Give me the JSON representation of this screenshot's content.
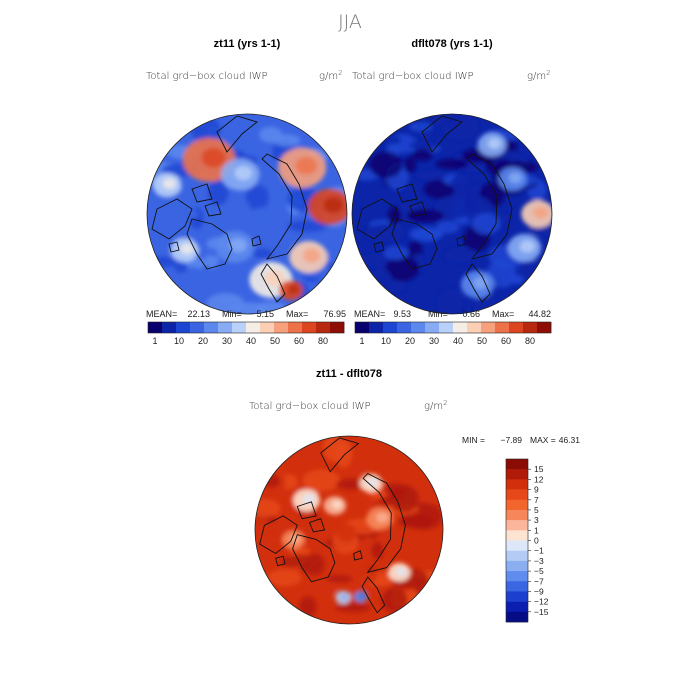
{
  "page_title": "JJA",
  "chart_data": [
    {
      "type": "heatmap",
      "panel": "zt11",
      "title": "zt11 (yrs 1-1)",
      "field_label": "Total grd−box cloud IWP",
      "units": "g/m",
      "units_exp": "2",
      "stats": {
        "mean_label": "MEAN=",
        "mean": "22.13",
        "min_label": "Min=",
        "min": "5.15",
        "max_label": "Max=",
        "max": "76.95"
      },
      "colorbar": {
        "levels": [
          1,
          10,
          20,
          30,
          40,
          50,
          60,
          80
        ],
        "tick_labels": [
          "1",
          "10",
          "20",
          "30",
          "40",
          "50",
          "60",
          "80"
        ],
        "colors": [
          "#08006e",
          "#0b24a8",
          "#1c46d2",
          "#3a64e2",
          "#5c88ee",
          "#87acf4",
          "#b9d1fa",
          "#f4eee6",
          "#fbcfb5",
          "#f6a07c",
          "#ed7249",
          "#dc4520",
          "#b8280e",
          "#8e0e05"
        ]
      },
      "map_style": "mostly-low",
      "blobs": [
        {
          "angle": 125,
          "radius": 0.66,
          "size": 0.22,
          "level": 10
        },
        {
          "angle": 40,
          "radius": 0.72,
          "size": 0.2,
          "level": 9
        },
        {
          "angle": 5,
          "radius": 0.83,
          "size": 0.18,
          "level": 11
        },
        {
          "angle": -35,
          "radius": 0.75,
          "size": 0.16,
          "level": 8
        },
        {
          "angle": -70,
          "radius": 0.7,
          "size": 0.18,
          "level": 7
        },
        {
          "angle": -60,
          "radius": 0.88,
          "size": 0.1,
          "level": 11
        },
        {
          "angle": 160,
          "radius": 0.85,
          "size": 0.12,
          "level": 6
        },
        {
          "angle": -150,
          "radius": 0.72,
          "size": 0.12,
          "level": 6
        },
        {
          "angle": 100,
          "radius": 0.4,
          "size": 0.16,
          "level": 5
        },
        {
          "angle": -110,
          "radius": 0.35,
          "size": 0.16,
          "level": 4
        }
      ]
    },
    {
      "type": "heatmap",
      "panel": "dflt078",
      "title": "dflt078 (yrs 1-1)",
      "field_label": "Total grd−box cloud IWP",
      "units": "g/m",
      "units_exp": "2",
      "stats": {
        "mean_label": "MEAN=",
        "mean": "9.53",
        "min_label": "Min=",
        "min": "0.66",
        "max_label": "Max=",
        "max": "44.82"
      },
      "colorbar": {
        "levels": [
          1,
          10,
          20,
          30,
          40,
          50,
          60,
          80
        ],
        "tick_labels": [
          "1",
          "10",
          "20",
          "30",
          "40",
          "50",
          "60",
          "80"
        ],
        "colors": [
          "#08006e",
          "#0b24a8",
          "#1c46d2",
          "#3a64e2",
          "#5c88ee",
          "#87acf4",
          "#b9d1fa",
          "#f4eee6",
          "#fbcfb5",
          "#f6a07c",
          "#ed7249",
          "#dc4520",
          "#b8280e",
          "#8e0e05"
        ]
      },
      "map_style": "very-low",
      "blobs": [
        {
          "angle": 0,
          "radius": 0.86,
          "size": 0.14,
          "level": 8
        },
        {
          "angle": -25,
          "radius": 0.8,
          "size": 0.14,
          "level": 5
        },
        {
          "angle": -70,
          "radius": 0.75,
          "size": 0.14,
          "level": 4
        },
        {
          "angle": 60,
          "radius": 0.8,
          "size": 0.12,
          "level": 5
        },
        {
          "angle": 30,
          "radius": 0.7,
          "size": 0.12,
          "level": 4
        }
      ]
    },
    {
      "type": "heatmap",
      "panel": "difference",
      "title": "zt11 - dflt078",
      "field_label": "Total grd−box cloud IWP",
      "units": "g/m",
      "units_exp": "2",
      "stats": {
        "min_label": "MIN =",
        "min": "−7.89",
        "max_label": "MAX =",
        "max": "46.31"
      },
      "colorbar": {
        "levels": [
          15,
          12,
          9,
          7,
          5,
          3,
          1,
          0,
          -1,
          -3,
          -5,
          -7,
          -9,
          -12,
          -15
        ],
        "tick_labels": [
          "15",
          "12",
          "9",
          "7",
          "5",
          "3",
          "1",
          "0",
          "−1",
          "−3",
          "−5",
          "−7",
          "−9",
          "−12",
          "−15"
        ],
        "colors": [
          "#8a0c04",
          "#b01a08",
          "#d2300d",
          "#e6481a",
          "#f2652d",
          "#f7875a",
          "#fab59a",
          "#fde3d2",
          "#dce8fa",
          "#b4ccf5",
          "#8aaef0",
          "#5f8ced",
          "#3a66e1",
          "#1c3fcf",
          "#0b1eb0",
          "#050c86"
        ]
      },
      "map_style": "mostly-high",
      "blobs": [
        {
          "angle": 145,
          "radius": 0.55,
          "size": 0.12,
          "level": 7
        },
        {
          "angle": 120,
          "radius": 0.3,
          "size": 0.1,
          "level": 6
        },
        {
          "angle": 65,
          "radius": 0.55,
          "size": 0.1,
          "level": 7
        },
        {
          "angle": -95,
          "radius": 0.72,
          "size": 0.07,
          "level": 9
        },
        {
          "angle": -80,
          "radius": 0.72,
          "size": 0.06,
          "level": 11
        },
        {
          "angle": -40,
          "radius": 0.7,
          "size": 0.1,
          "level": 7
        },
        {
          "angle": 190,
          "radius": 0.6,
          "size": 0.1,
          "level": 5
        },
        {
          "angle": 20,
          "radius": 0.35,
          "size": 0.12,
          "level": 5
        }
      ]
    }
  ]
}
